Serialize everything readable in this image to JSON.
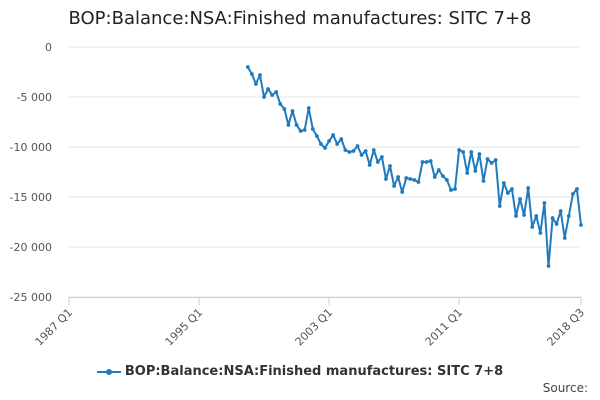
{
  "chart_data": {
    "type": "line",
    "title": "BOP:Balance:NSA:Finished manufactures: SITC 7+8",
    "source_label": "Source:",
    "x_axis": {
      "tick_labels": [
        "1987 Q1",
        "1995 Q1",
        "2003 Q1",
        "2011 Q1",
        "2018 Q3"
      ],
      "tick_values": [
        1987.0,
        1995.0,
        2003.0,
        2011.0,
        2018.5
      ],
      "range": [
        1987.0,
        2018.5
      ]
    },
    "y_axis": {
      "tick_labels": [
        "0",
        "-5 000",
        "-10 000",
        "-15 000",
        "-20 000",
        "-25 000"
      ],
      "tick_values": [
        0,
        -5000,
        -10000,
        -15000,
        -20000,
        -25000
      ],
      "range": [
        -25000,
        0
      ]
    },
    "grid": true,
    "legend_position": "bottom",
    "series": [
      {
        "name": "BOP:Balance:NSA:Finished manufactures: SITC 7+8",
        "color": "#1f7bbd",
        "x": [
          1998.0,
          1998.25,
          1998.5,
          1998.75,
          1999.0,
          1999.25,
          1999.5,
          1999.75,
          2000.0,
          2000.25,
          2000.5,
          2000.75,
          2001.0,
          2001.25,
          2001.5,
          2001.75,
          2002.0,
          2002.25,
          2002.5,
          2002.75,
          2003.0,
          2003.25,
          2003.5,
          2003.75,
          2004.0,
          2004.25,
          2004.5,
          2004.75,
          2005.0,
          2005.25,
          2005.5,
          2005.75,
          2006.0,
          2006.25,
          2006.5,
          2006.75,
          2007.0,
          2007.25,
          2007.5,
          2007.75,
          2008.0,
          2008.25,
          2008.5,
          2008.75,
          2009.0,
          2009.25,
          2009.5,
          2009.75,
          2010.0,
          2010.25,
          2010.5,
          2010.75,
          2011.0,
          2011.25,
          2011.5,
          2011.75,
          2012.0,
          2012.25,
          2012.5,
          2012.75,
          2013.0,
          2013.25,
          2013.5,
          2013.75,
          2014.0,
          2014.25,
          2014.5,
          2014.75,
          2015.0,
          2015.25,
          2015.5,
          2015.75,
          2016.0,
          2016.25,
          2016.5,
          2016.75,
          2017.0,
          2017.25,
          2017.5,
          2017.75,
          2018.0,
          2018.25,
          2018.5
        ],
        "y": [
          -2000,
          -2700,
          -3700,
          -2800,
          -5000,
          -4200,
          -4800,
          -4500,
          -5700,
          -6200,
          -7800,
          -6400,
          -7800,
          -8400,
          -8300,
          -6100,
          -8200,
          -8900,
          -9700,
          -10100,
          -9400,
          -8800,
          -9700,
          -9200,
          -10300,
          -10500,
          -10400,
          -9900,
          -10800,
          -10400,
          -11800,
          -10300,
          -11500,
          -11000,
          -13200,
          -11900,
          -13900,
          -13000,
          -14500,
          -13100,
          -13200,
          -13300,
          -13500,
          -11500,
          -11500,
          -11400,
          -13000,
          -12300,
          -12900,
          -13300,
          -14300,
          -14200,
          -10300,
          -10500,
          -12600,
          -10500,
          -12400,
          -10700,
          -13400,
          -11200,
          -11600,
          -11300,
          -15900,
          -13600,
          -14600,
          -14200,
          -16900,
          -15200,
          -16800,
          -14100,
          -18000,
          -16900,
          -18600,
          -15600,
          -21900,
          -17100,
          -17700,
          -16400,
          -19100,
          -16900,
          -14700,
          -14200,
          -17800
        ]
      }
    ]
  }
}
